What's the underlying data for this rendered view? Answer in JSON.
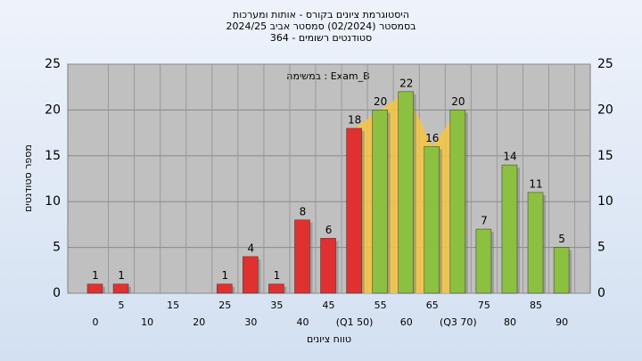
{
  "chart_data": {
    "type": "bar",
    "title": [
      "היסטוגרמת ציונים בקורס - אותות ומערכות",
      "בסמסטר  (02/2024)  סמסטר אביב 2024/25",
      "364 - סטודנטים רשומים"
    ],
    "annotation": "במשימה : Exam_B",
    "x_label": "טווח ציונים",
    "y_label": "מספר סטודנטים",
    "categories": [
      "0",
      "5",
      "10",
      "15",
      "20",
      "25",
      "30",
      "35",
      "40",
      "45",
      "(Q1 50)",
      "55",
      "60",
      "65",
      "(Q3 70)",
      "75",
      "80",
      "85",
      "90"
    ],
    "values": [
      1,
      1,
      null,
      null,
      null,
      1,
      4,
      1,
      8,
      6,
      18,
      20,
      22,
      16,
      20,
      7,
      14,
      11,
      5
    ],
    "colors": [
      "#e03030",
      "#e03030",
      "#e03030",
      "#e03030",
      "#e03030",
      "#e03030",
      "#e03030",
      "#e03030",
      "#e03030",
      "#e03030",
      "#e03030",
      "#8cc040",
      "#8cc040",
      "#8cc040",
      "#8cc040",
      "#8cc040",
      "#8cc040",
      "#8cc040",
      "#8cc040"
    ],
    "band_color": "#f5c542",
    "ylim": [
      0,
      25
    ],
    "yticks": [
      0,
      5,
      10,
      15,
      20,
      25
    ],
    "grid": true
  }
}
